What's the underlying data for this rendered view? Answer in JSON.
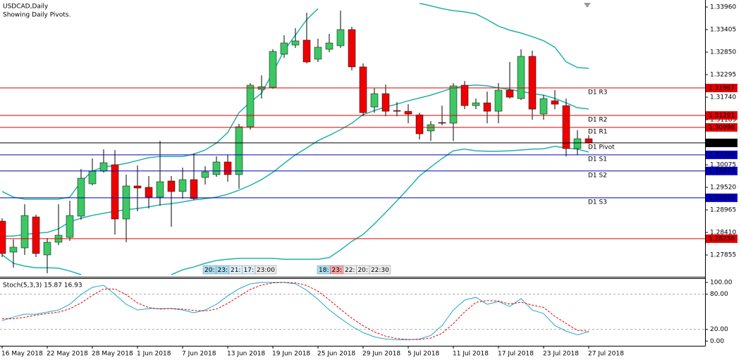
{
  "chart_data": [
    {
      "type": "candlestick",
      "title": "USDCAD,Daily",
      "subtitle": "Showing Daily Pivots.",
      "categories": [
        "16 May 2018",
        null,
        null,
        null,
        "22 May 2018",
        null,
        null,
        null,
        "28 May 2018",
        null,
        null,
        null,
        "1 Jun 2018",
        null,
        null,
        null,
        "7 Jun 2018",
        null,
        null,
        null,
        "13 Jun 2018",
        null,
        null,
        null,
        "19 Jun 2018",
        null,
        null,
        null,
        "25 Jun 2018",
        null,
        null,
        null,
        "29 Jun 2018",
        null,
        null,
        null,
        "5 Jul 2018",
        null,
        null,
        null,
        "11 Jul 2018",
        null,
        null,
        null,
        "17 Jul 2018",
        null,
        null,
        null,
        "23 Jul 2018",
        null,
        null,
        null,
        "27 Jul 2018"
      ],
      "open": [
        1.28688,
        1.27925,
        1.28029,
        1.28792,
        1.27856,
        1.28168,
        1.28289,
        1.2881,
        1.29607,
        1.29919,
        1.30076,
        1.2874,
        1.29555,
        1.29521,
        1.29278,
        1.29677,
        1.29417,
        1.29711,
        1.29763,
        1.29833,
        1.30145,
        1.29833,
        1.31012,
        1.31931,
        1.31983,
        1.32798,
        1.33023,
        1.33145,
        1.32676,
        1.32919,
        1.33006,
        1.33405,
        1.32486,
        1.31497,
        1.31827,
        1.31411,
        1.31393,
        1.31306,
        1.30908,
        1.31116,
        1.31099,
        1.32035,
        1.31532,
        1.31601,
        1.31393,
        1.31914,
        1.31705,
        1.32746,
        1.31324,
        1.31653,
        1.31532,
        1.30474,
        1.30717
      ],
      "high": [
        1.28758,
        1.28237,
        1.29104,
        1.28844,
        1.28272,
        1.29104,
        1.29191,
        1.29971,
        1.30231,
        1.30457,
        1.3044,
        1.29833,
        1.30058,
        1.29798,
        1.30665,
        1.29798,
        1.30006,
        1.30353,
        1.30041,
        1.30284,
        1.30318,
        1.31081,
        1.32087,
        1.32278,
        1.32919,
        1.33266,
        1.33439,
        1.33821,
        1.33179,
        1.33301,
        1.33873,
        1.33474,
        1.32572,
        1.31966,
        1.32052,
        1.31619,
        1.31567,
        1.31359,
        1.31151,
        1.31532,
        1.32087,
        1.32139,
        1.31705,
        1.31879,
        1.32087,
        1.32607,
        1.32919,
        1.32885,
        1.31792,
        1.31914,
        1.31705,
        1.30925,
        1.30804
      ],
      "low": [
        1.27804,
        1.27544,
        1.27856,
        1.27804,
        1.27405,
        1.28099,
        1.28203,
        1.28723,
        1.29573,
        1.29885,
        1.28359,
        1.28168,
        1.28931,
        1.29001,
        1.2907,
        1.2855,
        1.29243,
        1.29208,
        1.2959,
        1.29781,
        1.29659,
        1.29486,
        1.30942,
        1.31705,
        1.31948,
        1.32711,
        1.32954,
        1.32572,
        1.32607,
        1.3285,
        1.32954,
        1.32399,
        1.31272,
        1.31359,
        1.31272,
        1.31272,
        1.31099,
        1.307,
        1.30665,
        1.31047,
        1.30665,
        1.31445,
        1.31445,
        1.31099,
        1.31099,
        1.31705,
        1.31671,
        1.31185,
        1.31185,
        1.31445,
        1.30284,
        1.30318,
        1.30596
      ],
      "close": [
        1.27891,
        1.28047,
        1.28827,
        1.27891,
        1.28168,
        1.28341,
        1.28827,
        1.29746,
        1.29919,
        1.30127,
        1.2874,
        1.29555,
        1.29503,
        1.29278,
        1.29659,
        1.29417,
        1.29711,
        1.29243,
        1.29902,
        1.30145,
        1.29833,
        1.31012,
        1.32035,
        1.32,
        1.32867,
        1.33075,
        1.33127,
        1.32607,
        1.32971,
        1.33075,
        1.33405,
        1.32486,
        1.31359,
        1.31827,
        1.31393,
        1.31393,
        1.31324,
        1.30838,
        1.31064,
        1.31099,
        1.32018,
        1.31532,
        1.31601,
        1.31393,
        1.31914,
        1.3174,
        1.32746,
        1.31445,
        1.31705,
        1.31567,
        1.30474,
        1.30717,
        1.30615
      ],
      "up_color": "#3cc864",
      "down_color": "#f00000",
      "bands": [
        {
          "color": "#20b2aa",
          "values": [
            1.2942,
            1.2928,
            1.2923,
            1.2923,
            1.2923,
            1.2923,
            1.2928,
            1.2966,
            1.2992,
            1.3002,
            1.3006,
            1.3011,
            1.3018,
            1.3025,
            1.3028,
            1.3028,
            1.3028,
            1.3034,
            1.3044,
            1.3061,
            1.3087,
            1.3136,
            1.3162,
            1.3184,
            1.3235,
            1.3289,
            1.3327,
            1.3365,
            1.3392,
            null,
            null,
            null,
            null,
            null,
            null,
            null,
            null,
            1.3405,
            1.3399,
            1.3392,
            1.3387,
            1.3384,
            1.3379,
            1.3365,
            1.3349,
            1.3339,
            1.3332,
            1.3323,
            1.3313,
            1.3297,
            1.3261,
            1.3247,
            1.3245
          ]
        },
        {
          "color": "#20b2aa",
          "values": [
            1.2832,
            1.2832,
            1.2836,
            1.2839,
            1.2841,
            1.285,
            1.2867,
            1.2876,
            1.2883,
            1.2888,
            1.2893,
            1.2897,
            1.29,
            1.2904,
            1.2909,
            1.2912,
            1.2916,
            1.2921,
            1.2924,
            1.2928,
            1.2935,
            1.2945,
            1.2957,
            1.2971,
            1.2989,
            1.3011,
            1.3032,
            1.3049,
            1.3067,
            1.308,
            1.3094,
            1.311,
            1.3131,
            1.3141,
            1.315,
            1.3157,
            1.3165,
            1.3172,
            1.3179,
            1.3188,
            1.3197,
            1.3202,
            1.3204,
            1.3202,
            1.3197,
            1.3193,
            1.3188,
            1.3183,
            1.3179,
            1.3171,
            1.316,
            1.3148,
            1.3145
          ]
        },
        {
          "color": "#20b2aa",
          "values": [
            1.2786,
            1.2765,
            1.2758,
            1.2754,
            1.2754,
            1.2753,
            1.2746,
            1.2737,
            null,
            null,
            null,
            null,
            null,
            null,
            null,
            1.2737,
            1.2749,
            1.2756,
            1.2765,
            1.2772,
            1.2775,
            1.2777,
            1.2777,
            1.2777,
            1.2777,
            1.2775,
            1.2775,
            1.2775,
            1.2775,
            1.2779,
            1.2798,
            1.2819,
            1.2836,
            1.2862,
            1.289,
            1.2919,
            1.2949,
            1.298,
            1.3002,
            1.3023,
            1.3042,
            1.3046,
            1.3042,
            1.3041,
            1.3041,
            1.3042,
            1.3044,
            1.3046,
            1.3047,
            1.3053,
            1.3049,
            1.3046,
            1.3039
          ]
        }
      ],
      "levels": [
        {
          "name": "D1 R3",
          "value": 1.31967,
          "color": "#e00000"
        },
        {
          "name": "D1 R2",
          "value": 1.31291,
          "color": "#e00000"
        },
        {
          "name": "D1 R1",
          "value": 1.30996,
          "color": "#e00000"
        },
        {
          "name": "D1 Pivot",
          "value": 1.30615,
          "color": "#000000"
        },
        {
          "name": "D1 S1",
          "value": 1.3032,
          "value_label": "1.30320",
          "color": "#0000c0"
        },
        {
          "name": "D1 S2",
          "value": 1.29923,
          "color": "#0000c0"
        },
        {
          "name": "D1 S3",
          "value": 1.29263,
          "color": "#0000c0"
        },
        {
          "value": 1.28256,
          "color": "#e00000"
        }
      ],
      "annotations": [
        [
          {
            "text": "20:",
            "color": "#a9dcf2"
          },
          {
            "text": "23:",
            "color": "#a9dcf2"
          },
          {
            "text": "21:",
            "color": "#dff1f8"
          },
          {
            "text": "17:",
            "color": "#dff1f8"
          },
          {
            "text": "23:00",
            "color": "#eeeeee"
          }
        ],
        [
          {
            "text": "18:",
            "color": "#a9dcf2"
          },
          {
            "text": "23:",
            "color": "#f4a3a3"
          },
          {
            "text": "22:",
            "color": "#eeeeee"
          },
          {
            "text": "20:",
            "color": "#eeeeee"
          },
          {
            "text": "22:30",
            "color": "#eeeeee"
          }
        ]
      ],
      "ylim": [
        1.27318,
        1.34133
      ],
      "yticks": [
        {
          "value": 1.3396,
          "label": "1.33960"
        },
        1.33405,
        {
          "value": 1.3285,
          "label": "1.32850"
        },
        1.32295,
        {
          "value": 1.3174,
          "label": "1.31740"
        },
        1.31185,
        1.30075,
        {
          "value": 1.2952,
          "label": "1.29520"
        },
        1.28965,
        {
          "value": 1.2841,
          "label": "1.28410"
        },
        1.27855
      ]
    },
    {
      "type": "line",
      "title": "Stoch(5,3,3) 15.87 16.93",
      "series": [
        {
          "color": "#1fa8d0",
          "dashed": false,
          "values": [
            34.9,
            41.0,
            45.8,
            45.8,
            49.4,
            53.0,
            62.7,
            79.5,
            91.6,
            95.2,
            79.5,
            62.7,
            53.0,
            55.4,
            55.4,
            55.4,
            53.0,
            48.2,
            53.0,
            62.7,
            77.1,
            89.2,
            97.6,
            100,
            100,
            100,
            97.6,
            86.7,
            71.1,
            53.0,
            38.6,
            25.3,
            14.5,
            7.2,
            3.6,
            2.4,
            2.4,
            3.6,
            9.6,
            26.5,
            53.0,
            69.9,
            74.7,
            62.7,
            67.5,
            59.0,
            72.3,
            53.0,
            47.0,
            26.5,
            16.9,
            10.8,
            15.87
          ]
        },
        {
          "color": "#e00000",
          "dashed": true,
          "values": [
            38,
            38,
            40.6,
            44.2,
            47.0,
            49.4,
            55.0,
            65.1,
            77.9,
            88.8,
            88.8,
            79.1,
            65.1,
            57.0,
            54.6,
            55.4,
            54.6,
            52.2,
            51.4,
            54.6,
            64.3,
            76.3,
            88.0,
            95.6,
            99.2,
            100,
            99.2,
            94.8,
            85.1,
            70.3,
            54.2,
            39.0,
            26.1,
            15.7,
            8.4,
            4.4,
            2.8,
            2.8,
            5.2,
            13.2,
            29.7,
            49.8,
            65.9,
            69.1,
            68.3,
            63.1,
            66.3,
            61.4,
            57.4,
            42.2,
            30.1,
            18.1,
            16.93
          ]
        }
      ],
      "ylim": [
        -8,
        106
      ],
      "yticks": [
        {
          "value": 100,
          "label": "100.00"
        },
        {
          "value": 80,
          "label": "80.00",
          "grid": true
        },
        {
          "value": 20,
          "label": "20.00",
          "grid": true
        },
        {
          "value": 0,
          "label": "0.00"
        }
      ]
    }
  ]
}
